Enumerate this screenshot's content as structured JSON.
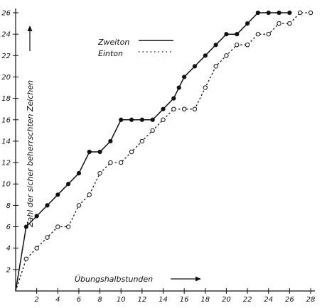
{
  "chart_data": {
    "type": "line",
    "xlabel": "Übungshalbstunden",
    "ylabel": "Zahl der sicher beherrschten Zeichen",
    "xlim": [
      0,
      28
    ],
    "ylim": [
      0,
      26
    ],
    "x_ticks": [
      "2",
      "4",
      "6",
      "8",
      "10",
      "12",
      "14",
      "16",
      "18",
      "20",
      "22",
      "24",
      "26",
      "28"
    ],
    "y_ticks": [
      "2",
      "4",
      "6",
      "8",
      "10",
      "12",
      "14",
      "16",
      "18",
      "20",
      "22",
      "24",
      "26"
    ],
    "grid": false,
    "legend_position": "top-center",
    "series": [
      {
        "name": "Zweiton",
        "line_style": "solid",
        "marker": "filled-circle",
        "x": [
          0,
          1,
          2,
          3,
          4,
          5,
          6,
          7,
          8,
          9,
          10,
          11,
          12,
          13,
          14,
          15,
          15.5,
          16,
          17,
          18,
          19,
          20,
          21,
          22,
          23,
          24,
          25,
          26
        ],
        "y": [
          0,
          6,
          7,
          8,
          9,
          10,
          11,
          13,
          13,
          14,
          16,
          16,
          16,
          16,
          17,
          18,
          19,
          20,
          21,
          22,
          23,
          24,
          24,
          25,
          26,
          26,
          26,
          26
        ]
      },
      {
        "name": "Einton",
        "line_style": "dotted",
        "marker": "open-circle",
        "x": [
          0,
          1,
          2,
          3,
          4,
          5,
          6,
          7,
          8,
          9,
          10,
          11,
          12,
          13,
          14,
          15,
          16,
          17,
          18,
          19,
          20,
          21,
          22,
          23,
          24,
          25,
          26,
          27,
          28
        ],
        "y": [
          0,
          3,
          4,
          5,
          6,
          6,
          8,
          9,
          11,
          12,
          12,
          13,
          14,
          15,
          16,
          17,
          17,
          17,
          19,
          21,
          22,
          23,
          23,
          24,
          24,
          25,
          25,
          26,
          26
        ]
      }
    ]
  }
}
